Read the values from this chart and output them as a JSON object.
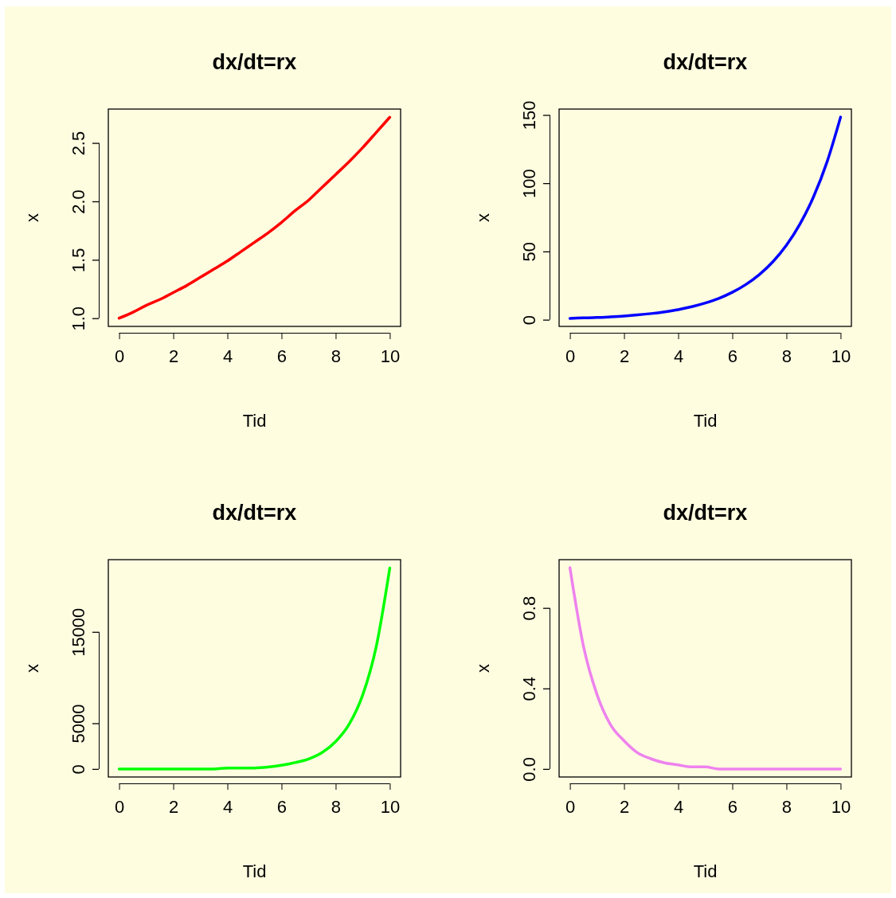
{
  "chart_data": [
    {
      "type": "line",
      "title": "dx/dt=rx",
      "xlabel": "Tid",
      "ylabel": "x",
      "x": [
        0,
        0.5,
        1,
        1.5,
        2,
        2.5,
        3,
        3.5,
        4,
        4.5,
        5,
        5.5,
        6,
        6.5,
        7,
        7.5,
        8,
        8.5,
        9,
        9.5,
        10
      ],
      "series": [
        {
          "color": "#ff0000",
          "values": [
            1.0,
            1.05,
            1.11,
            1.16,
            1.22,
            1.28,
            1.35,
            1.42,
            1.49,
            1.57,
            1.65,
            1.73,
            1.82,
            1.92,
            2.01,
            2.12,
            2.23,
            2.34,
            2.46,
            2.59,
            2.72
          ]
        }
      ],
      "xlim": [
        -0.4,
        10.4
      ],
      "xticks": [
        0,
        2,
        4,
        6,
        8,
        10
      ],
      "ylim": [
        0.93,
        2.79
      ],
      "yticks": [
        {
          "value": 1,
          "label": "1.0"
        },
        {
          "value": 1.5,
          "label": "1.5"
        },
        {
          "value": 2,
          "label": "2.0"
        },
        {
          "value": 2.5,
          "label": "2.5"
        }
      ]
    },
    {
      "type": "line",
      "title": "dx/dt=rx",
      "xlabel": "Tid",
      "ylabel": "x",
      "x": [
        0,
        0.5,
        1,
        1.5,
        2,
        2.5,
        3,
        3.5,
        4,
        4.5,
        5,
        5.5,
        6,
        6.5,
        7,
        7.5,
        8,
        8.5,
        9,
        9.5,
        10
      ],
      "series": [
        {
          "color": "#0000ff",
          "values": [
            1,
            1.3,
            1.6,
            2.1,
            2.7,
            3.5,
            4.5,
            5.8,
            7.4,
            9.5,
            12.2,
            15.6,
            20.1,
            25.8,
            33.1,
            42.5,
            54.6,
            70.1,
            90.0,
            115.6,
            148.4
          ]
        }
      ],
      "xlim": [
        -0.4,
        10.4
      ],
      "xticks": [
        0,
        2,
        4,
        6,
        8,
        10
      ],
      "ylim": [
        -4.9,
        154.3
      ],
      "yticks": [
        0,
        50,
        100,
        150
      ]
    },
    {
      "type": "line",
      "title": "dx/dt=rx",
      "xlabel": "Tid",
      "ylabel": "x",
      "x": [
        0,
        0.5,
        1,
        1.5,
        2,
        2.5,
        3,
        3.5,
        4,
        4.5,
        5,
        5.5,
        6,
        6.5,
        7,
        7.5,
        8,
        8.5,
        9,
        9.5,
        10
      ],
      "series": [
        {
          "color": "#00ff00",
          "values": [
            0,
            0,
            0,
            0,
            0,
            0,
            0,
            0,
            100,
            100,
            100,
            200,
            400,
            700,
            1100,
            1800,
            3000,
            4900,
            8100,
            13400,
            22000
          ]
        }
      ],
      "xlim": [
        -0.4,
        10.4
      ],
      "xticks": [
        0,
        2,
        4,
        6,
        8,
        10
      ],
      "ylim": [
        -880,
        22907
      ],
      "yticks": [
        0,
        5000,
        15000
      ]
    },
    {
      "type": "line",
      "title": "dx/dt=rx",
      "xlabel": "Tid",
      "ylabel": "x",
      "x": [
        0,
        0.5,
        1,
        1.5,
        2,
        2.5,
        3,
        3.5,
        4,
        4.5,
        5,
        5.5,
        6,
        6.5,
        7,
        7.5,
        8,
        8.5,
        9,
        9.5,
        10
      ],
      "series": [
        {
          "color": "#ee82ee",
          "values": [
            1.0,
            0.61,
            0.37,
            0.22,
            0.14,
            0.08,
            0.05,
            0.03,
            0.02,
            0.01,
            0.01,
            0,
            0,
            0,
            0,
            0,
            0,
            0,
            0,
            0,
            0
          ]
        }
      ],
      "xlim": [
        -0.4,
        10.4
      ],
      "xticks": [
        0,
        2,
        4,
        6,
        8,
        10
      ],
      "ylim": [
        -0.04,
        1.04
      ],
      "yticks": [
        {
          "value": 0,
          "label": "0.0"
        },
        {
          "value": 0.4,
          "label": "0.4"
        },
        {
          "value": 0.8,
          "label": "0.8"
        }
      ]
    }
  ]
}
